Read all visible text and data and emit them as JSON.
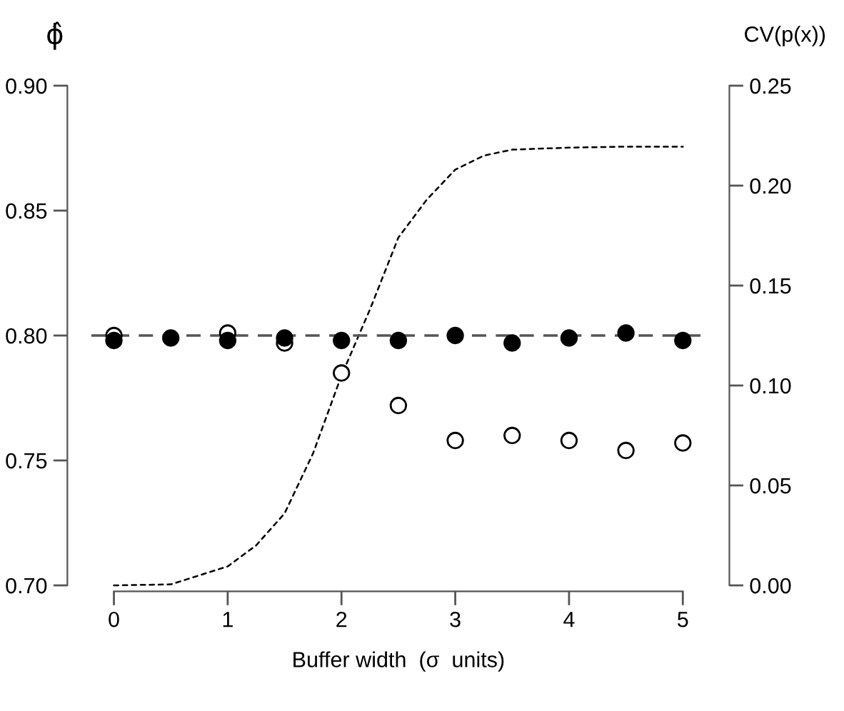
{
  "chart_data": {
    "type": "scatter",
    "xlabel": "Buffer width  (σ  units)",
    "ylabel": "ϕ̂",
    "y2label": "CV(p(x))",
    "x": [
      0,
      0.5,
      1,
      1.5,
      2,
      2.5,
      3,
      3.5,
      4,
      4.5,
      5
    ],
    "series": [
      {
        "marker": "circle",
        "color": "#ffffff",
        "values": [
          0.8,
          null,
          0.801,
          0.797,
          0.785,
          0.772,
          0.758,
          0.76,
          0.758,
          0.754,
          0.757
        ]
      },
      {
        "marker": "circle",
        "color": "#000000",
        "values": [
          0.798,
          0.799,
          0.798,
          0.799,
          0.798,
          0.798,
          0.8,
          0.797,
          0.799,
          0.801,
          0.798
        ]
      },
      {
        "type": "line",
        "axis": "y2",
        "line_style": "dotted",
        "color": "#000000",
        "x": [
          0,
          0.5,
          1,
          1.25,
          1.5,
          1.75,
          2,
          2.25,
          2.5,
          2.75,
          3,
          3.25,
          3.5,
          4,
          4.5,
          5
        ],
        "values": [
          0,
          0.0005,
          0.0095,
          0.02,
          0.036,
          0.066,
          0.105,
          0.138,
          0.174,
          0.193,
          0.208,
          0.215,
          0.218,
          0.219,
          0.2195,
          0.2195
        ]
      }
    ],
    "ref_lines": [
      {
        "axis": "y",
        "value": 0.8,
        "line_style": "dashed",
        "color": "#555555"
      }
    ],
    "xlim": [
      -0.2,
      5.2
    ],
    "xticks": [
      0,
      1,
      2,
      3,
      4,
      5
    ],
    "ylim": [
      0.7,
      0.9
    ],
    "yticks": [
      {
        "value": 0.7,
        "label": "0.70"
      },
      {
        "value": 0.75,
        "label": "0.75"
      },
      {
        "value": 0.8,
        "label": "0.80"
      },
      {
        "value": 0.85,
        "label": "0.85"
      },
      {
        "value": 0.9,
        "label": "0.90"
      }
    ],
    "y2lim": [
      0,
      0.25
    ],
    "y2ticks": [
      {
        "value": 0,
        "label": "0.00"
      },
      {
        "value": 0.05,
        "label": "0.05"
      },
      {
        "value": 0.1,
        "label": "0.10"
      },
      {
        "value": 0.15,
        "label": "0.15"
      },
      {
        "value": 0.2,
        "label": "0.20"
      },
      {
        "value": 0.25,
        "label": "0.25"
      }
    ],
    "grid": false,
    "legend": false
  }
}
